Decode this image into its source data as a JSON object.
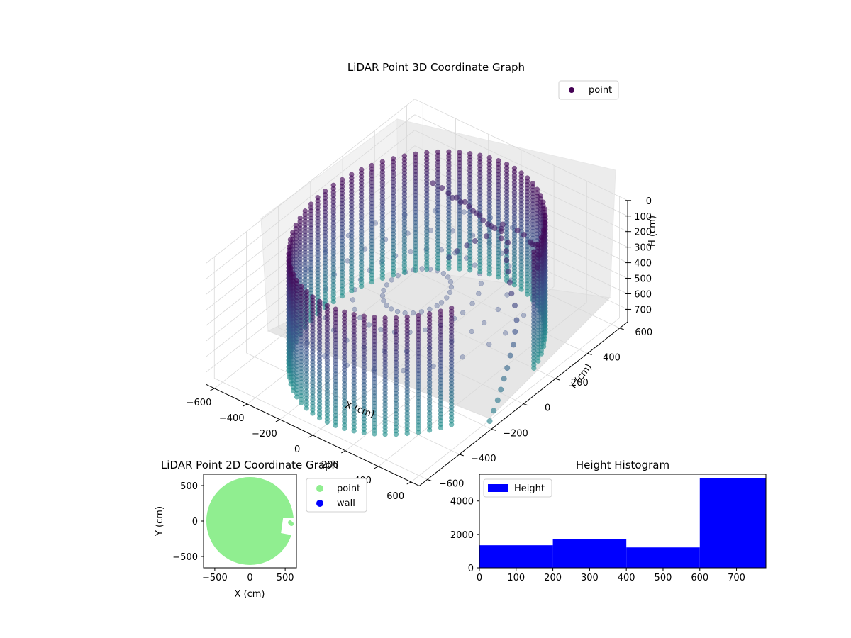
{
  "chart_data": [
    {
      "type": "scatter",
      "projection": "3d",
      "title": "LiDAR Point 3D Coordinate Graph",
      "xlabel": "X (cm)",
      "ylabel": "Y (cm)",
      "zlabel": "H (cm)",
      "xlim": [
        -650,
        650
      ],
      "ylim": [
        -650,
        650
      ],
      "zlim": [
        0,
        780
      ],
      "z_inverted": true,
      "x_ticks": [
        "−600",
        "−400",
        "−200",
        "0",
        "200",
        "400",
        "600"
      ],
      "y_ticks": [
        "−600",
        "−400",
        "−200",
        "0",
        "200",
        "400",
        "600"
      ],
      "z_ticks": [
        "0",
        "100",
        "200",
        "300",
        "400",
        "500",
        "600",
        "700"
      ],
      "colormap": "viridis",
      "legend": {
        "placement": "top-right",
        "entries": [
          {
            "label": "point",
            "color": "#440154"
          }
        ]
      },
      "shape": {
        "kind": "cylinder-wall",
        "radius": 560,
        "height_range": [
          20,
          775
        ],
        "missing_arc_deg": [
          -30,
          20
        ],
        "columns": 72
      },
      "stray_points": [
        [
          230,
          290,
          100
        ],
        [
          180,
          300,
          130
        ],
        [
          150,
          310,
          140
        ],
        [
          120,
          320,
          150
        ],
        [
          90,
          320,
          140
        ],
        [
          60,
          330,
          130
        ],
        [
          30,
          340,
          140
        ],
        [
          0,
          350,
          150
        ],
        [
          -30,
          355,
          140
        ],
        [
          -60,
          360,
          130
        ],
        [
          -90,
          365,
          150
        ],
        [
          -120,
          370,
          140
        ],
        [
          -150,
          375,
          160
        ],
        [
          -180,
          380,
          150
        ],
        [
          250,
          270,
          90
        ],
        [
          270,
          250,
          110
        ],
        [
          300,
          260,
          130
        ],
        [
          320,
          230,
          150
        ],
        [
          150,
          280,
          180
        ],
        [
          100,
          260,
          220
        ],
        [
          60,
          250,
          260
        ],
        [
          20,
          230,
          300
        ],
        [
          -10,
          210,
          340
        ],
        [
          350,
          200,
          170
        ],
        [
          380,
          180,
          210
        ],
        [
          410,
          160,
          250
        ],
        [
          440,
          140,
          290
        ],
        [
          480,
          120,
          330
        ],
        [
          520,
          90,
          380
        ],
        [
          540,
          60,
          420
        ],
        [
          560,
          30,
          470
        ],
        [
          570,
          0,
          510
        ],
        [
          580,
          -30,
          560
        ],
        [
          590,
          -60,
          600
        ],
        [
          600,
          -90,
          640
        ],
        [
          610,
          -120,
          680
        ],
        [
          615,
          -150,
          720
        ],
        [
          620,
          -180,
          760
        ],
        [
          520,
          230,
          80
        ],
        [
          540,
          200,
          120
        ],
        [
          470,
          260,
          60
        ],
        [
          430,
          280,
          90
        ],
        [
          400,
          300,
          110
        ],
        [
          200,
          330,
          120
        ],
        [
          -200,
          360,
          110
        ],
        [
          -250,
          355,
          100
        ],
        [
          300,
          320,
          100
        ],
        [
          350,
          310,
          95
        ]
      ]
    },
    {
      "type": "scatter",
      "title": "LiDAR Point 2D Coordinate Graph",
      "xlabel": "X (cm)",
      "ylabel": "Y (cm)",
      "xlim": [
        -660,
        660
      ],
      "ylim": [
        -660,
        660
      ],
      "x_ticks": [
        "−500",
        "0",
        "500"
      ],
      "y_ticks": [
        "−500",
        "0",
        "500"
      ],
      "legend": {
        "placement": "outside-right",
        "entries": [
          {
            "label": "point",
            "color": "#90ee90"
          },
          {
            "label": "wall",
            "color": "#0000ff"
          }
        ]
      },
      "series": [
        {
          "name": "point",
          "color": "#90ee90",
          "shape": "disk",
          "radius": 620,
          "notch": {
            "x_from": 440,
            "y_from": -170,
            "y_to": 40
          }
        },
        {
          "name": "wall",
          "color": "#0000ff",
          "values": []
        }
      ]
    },
    {
      "type": "bar",
      "title": "Height Histogram",
      "xlabel": "",
      "ylabel": "",
      "xlim": [
        0,
        780
      ],
      "ylim": [
        0,
        5600
      ],
      "x_ticks": [
        "0",
        "100",
        "200",
        "300",
        "400",
        "500",
        "600",
        "700"
      ],
      "y_ticks": [
        "0",
        "2000",
        "4000"
      ],
      "legend": {
        "placement": "top-left",
        "entries": [
          {
            "label": "Height",
            "color": "#0000ff"
          }
        ]
      },
      "bins": [
        {
          "from": 0,
          "to": 200,
          "value": 1350
        },
        {
          "from": 200,
          "to": 400,
          "value": 1700
        },
        {
          "from": 400,
          "to": 600,
          "value": 1220
        },
        {
          "from": 600,
          "to": 780,
          "value": 5350
        }
      ]
    }
  ]
}
